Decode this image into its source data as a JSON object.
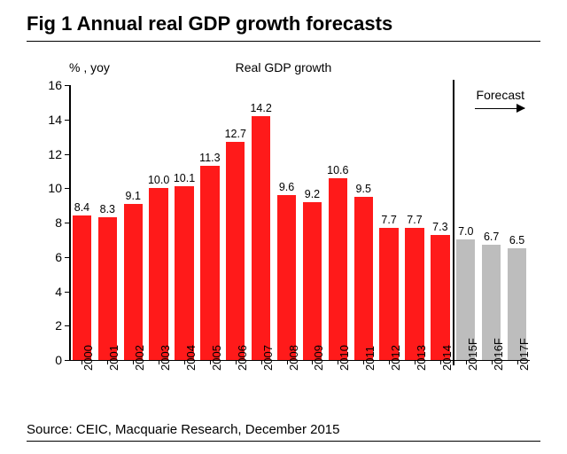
{
  "title": "Fig 1    Annual real GDP growth forecasts",
  "chart": {
    "type": "bar",
    "ylabel": "% , yoy",
    "subtitle": "Real GDP growth",
    "forecast_label": "Forecast",
    "ylim": [
      0,
      16
    ],
    "ytick_step": 2,
    "yticks": [
      0,
      2,
      4,
      6,
      8,
      10,
      12,
      14,
      16
    ],
    "historical_count": 15,
    "bar_color_historical": "#ff1a1a",
    "bar_color_forecast": "#bdbdbd",
    "background_color": "#ffffff",
    "axis_color": "#000000",
    "text_color": "#000000",
    "bar_width_ratio": 0.74,
    "categories": [
      "2000",
      "2001",
      "2002",
      "2003",
      "2004",
      "2005",
      "2006",
      "2007",
      "2008",
      "2009",
      "2010",
      "2011",
      "2012",
      "2013",
      "2014",
      "2015F",
      "2016F",
      "2017F"
    ],
    "values": [
      8.4,
      8.3,
      9.1,
      10.0,
      10.1,
      11.3,
      12.7,
      14.2,
      9.6,
      9.2,
      10.6,
      9.5,
      7.7,
      7.7,
      7.3,
      7.0,
      6.7,
      6.5
    ],
    "value_labels": [
      "8.4",
      "8.3",
      "9.1",
      "10.0",
      "10.1",
      "11.3",
      "12.7",
      "14.2",
      "9.6",
      "9.2",
      "10.6",
      "9.5",
      "7.7",
      "7.7",
      "7.3",
      "7.0",
      "6.7",
      "6.5"
    ],
    "title_fontsize": 22,
    "label_fontsize": 14,
    "tick_fontsize": 14,
    "bar_label_fontsize": 12.5,
    "xlabel_fontsize": 13
  },
  "source": "Source: CEIC, Macquarie Research, December 2015"
}
